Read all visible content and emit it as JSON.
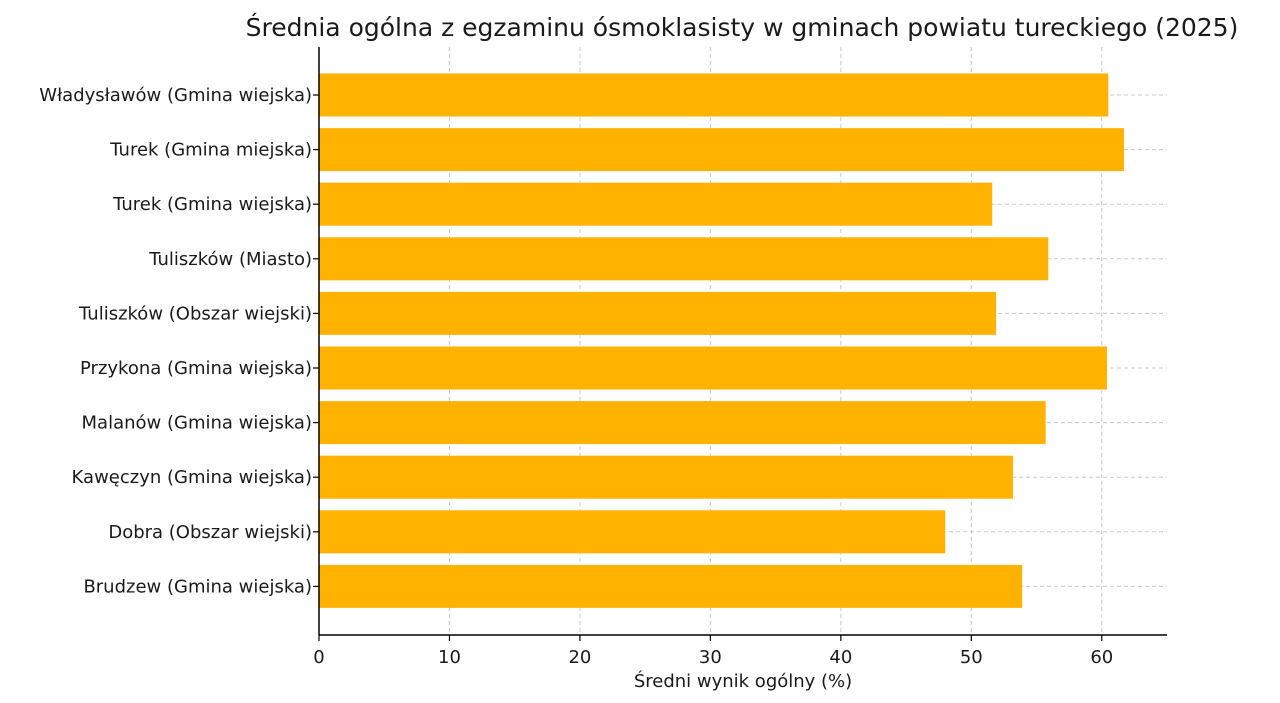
{
  "chart_data": {
    "type": "bar",
    "orientation": "horizontal",
    "title": "Średnia ogólna z egzaminu ósmoklasisty w gminach powiatu tureckiego (2025)",
    "xlabel": "Średni wynik ogólny (%)",
    "ylabel": "",
    "categories": [
      "Władysławów (Gmina wiejska)",
      "Turek (Gmina miejska)",
      "Turek (Gmina wiejska)",
      "Tuliszków (Miasto)",
      "Tuliszków (Obszar wiejski)",
      "Przykona (Gmina wiejska)",
      "Malanów (Gmina wiejska)",
      "Kawęczyn (Gmina wiejska)",
      "Dobra (Obszar wiejski)",
      "Brudzew (Gmina wiejska)"
    ],
    "values": [
      60.5,
      61.7,
      51.6,
      55.9,
      51.9,
      60.4,
      55.7,
      53.2,
      48.0,
      53.9
    ],
    "xlim": [
      0,
      65
    ],
    "xticks": [
      0,
      10,
      20,
      30,
      40,
      50,
      60
    ],
    "xtick_labels": [
      "0",
      "10",
      "20",
      "30",
      "40",
      "50",
      "60"
    ],
    "grid": true,
    "bar_color": "#FFB300"
  }
}
